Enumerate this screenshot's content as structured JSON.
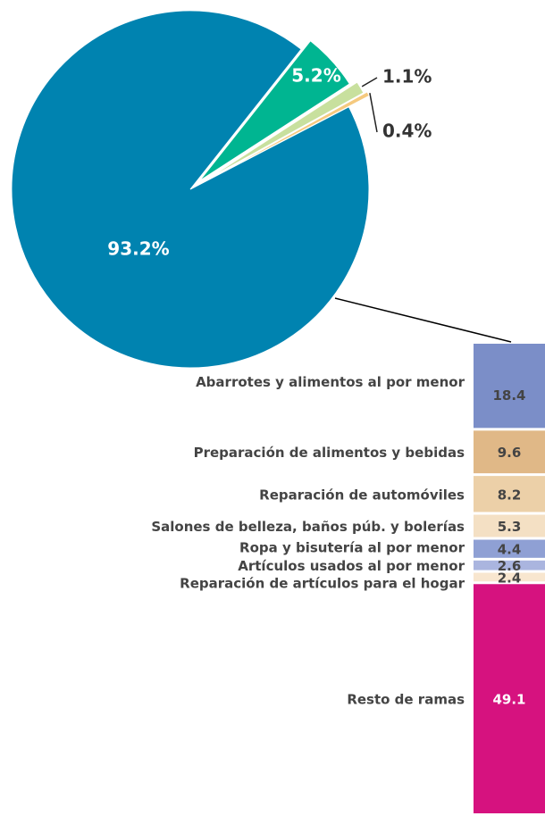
{
  "chart_data": [
    {
      "type": "pie",
      "values": [
        93.2,
        5.2,
        1.1,
        0.4
      ],
      "value_labels": [
        "93.2%",
        "5.2%",
        "1.1%",
        "0.4%"
      ],
      "colors": [
        "#0083b0",
        "#00b591",
        "#c8e09e",
        "#f5c97e"
      ]
    },
    {
      "type": "stacked-bar",
      "categories": [
        "Abarrotes y alimentos al por menor",
        "Preparación de alimentos y bebidas",
        "Reparación de automóviles",
        "Salones de belleza, baños púb. y bolerías",
        "Ropa y bisutería al por menor",
        "Artículos usados al por menor",
        "Reparación de artículos para el hogar",
        "Resto de ramas"
      ],
      "values": [
        18.4,
        9.6,
        8.2,
        5.3,
        4.4,
        2.6,
        2.4,
        49.1
      ],
      "colors": [
        "#7b8ec8",
        "#e0b887",
        "#ecd0a8",
        "#f4e0c4",
        "#8fa0d4",
        "#aab5df",
        "#f8e6cf",
        "#d6127f"
      ]
    }
  ]
}
